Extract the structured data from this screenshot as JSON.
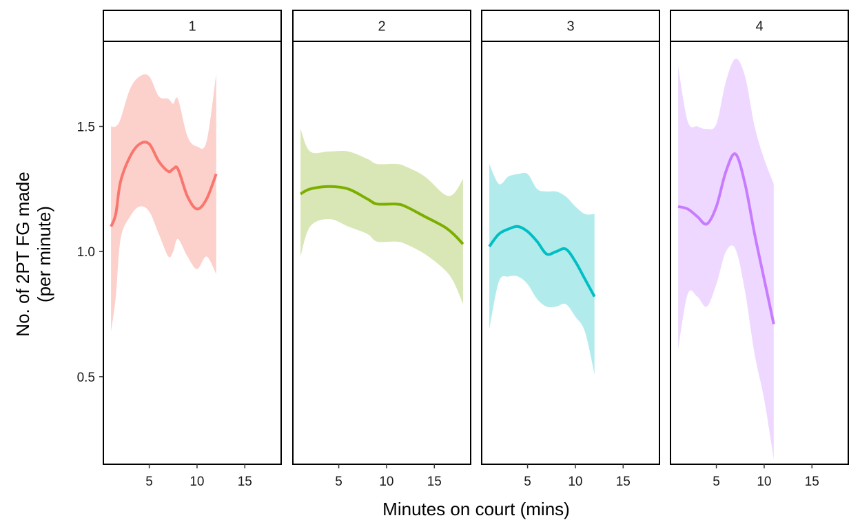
{
  "chart_data": {
    "type": "line",
    "facets": [
      "1",
      "2",
      "3",
      "4"
    ],
    "xlabel": "Minutes on court (mins)",
    "ylabel": [
      "No. of 2PT FG made",
      "(per minute)"
    ],
    "xlim": [
      0.2,
      18.8
    ],
    "ylim": [
      0.15,
      1.84
    ],
    "xticks": [
      5,
      10,
      15
    ],
    "yticks": [
      0.5,
      1.0,
      1.5
    ],
    "ytick_labels": [
      "0.5",
      "1.0",
      "1.5"
    ],
    "smooth": true,
    "panel_grid": false,
    "legend": "none",
    "series": [
      {
        "facet": "1",
        "color": "#F8766D",
        "band_color": "#FCD0CB",
        "points": [
          {
            "x": 1,
            "y": 1.1,
            "lo": 0.68,
            "hi": 1.5
          },
          {
            "x": 1.5,
            "y": 1.15,
            "lo": 0.82,
            "hi": 1.5
          },
          {
            "x": 2,
            "y": 1.28,
            "lo": 1.05,
            "hi": 1.53
          },
          {
            "x": 3,
            "y": 1.38,
            "lo": 1.14,
            "hi": 1.65
          },
          {
            "x": 4,
            "y": 1.43,
            "lo": 1.18,
            "hi": 1.7
          },
          {
            "x": 5,
            "y": 1.43,
            "lo": 1.16,
            "hi": 1.7
          },
          {
            "x": 6,
            "y": 1.36,
            "lo": 1.07,
            "hi": 1.62
          },
          {
            "x": 7,
            "y": 1.32,
            "lo": 0.98,
            "hi": 1.61
          },
          {
            "x": 7.5,
            "y": 1.33,
            "lo": 1.0,
            "hi": 1.59
          },
          {
            "x": 8,
            "y": 1.33,
            "lo": 1.05,
            "hi": 1.61
          },
          {
            "x": 9,
            "y": 1.22,
            "lo": 0.98,
            "hi": 1.46
          },
          {
            "x": 10,
            "y": 1.17,
            "lo": 0.93,
            "hi": 1.42
          },
          {
            "x": 11,
            "y": 1.21,
            "lo": 0.98,
            "hi": 1.44
          },
          {
            "x": 12,
            "y": 1.31,
            "lo": 0.91,
            "hi": 1.71
          }
        ]
      },
      {
        "facet": "2",
        "color": "#7CAE00",
        "band_color": "#D9E7B6",
        "points": [
          {
            "x": 1,
            "y": 1.23,
            "lo": 0.98,
            "hi": 1.49
          },
          {
            "x": 2,
            "y": 1.25,
            "lo": 1.1,
            "hi": 1.4
          },
          {
            "x": 4,
            "y": 1.26,
            "lo": 1.13,
            "hi": 1.4
          },
          {
            "x": 6,
            "y": 1.25,
            "lo": 1.1,
            "hi": 1.4
          },
          {
            "x": 8,
            "y": 1.21,
            "lo": 1.07,
            "hi": 1.37
          },
          {
            "x": 9,
            "y": 1.19,
            "lo": 1.04,
            "hi": 1.35
          },
          {
            "x": 11,
            "y": 1.19,
            "lo": 1.04,
            "hi": 1.35
          },
          {
            "x": 12,
            "y": 1.18,
            "lo": 1.03,
            "hi": 1.34
          },
          {
            "x": 14,
            "y": 1.14,
            "lo": 0.99,
            "hi": 1.3
          },
          {
            "x": 16,
            "y": 1.1,
            "lo": 0.93,
            "hi": 1.23
          },
          {
            "x": 17,
            "y": 1.07,
            "lo": 0.88,
            "hi": 1.23
          },
          {
            "x": 18,
            "y": 1.03,
            "lo": 0.79,
            "hi": 1.29
          }
        ]
      },
      {
        "facet": "3",
        "color": "#00BFC4",
        "band_color": "#B2EBEC",
        "points": [
          {
            "x": 1,
            "y": 1.02,
            "lo": 0.69,
            "hi": 1.35
          },
          {
            "x": 2,
            "y": 1.07,
            "lo": 0.88,
            "hi": 1.27
          },
          {
            "x": 3,
            "y": 1.09,
            "lo": 0.9,
            "hi": 1.3
          },
          {
            "x": 4,
            "y": 1.1,
            "lo": 0.9,
            "hi": 1.31
          },
          {
            "x": 5,
            "y": 1.08,
            "lo": 0.87,
            "hi": 1.31
          },
          {
            "x": 6,
            "y": 1.04,
            "lo": 0.81,
            "hi": 1.25
          },
          {
            "x": 7,
            "y": 0.99,
            "lo": 0.78,
            "hi": 1.24
          },
          {
            "x": 8,
            "y": 1.0,
            "lo": 0.78,
            "hi": 1.24
          },
          {
            "x": 9,
            "y": 1.01,
            "lo": 0.79,
            "hi": 1.22
          },
          {
            "x": 10,
            "y": 0.96,
            "lo": 0.74,
            "hi": 1.18
          },
          {
            "x": 11,
            "y": 0.89,
            "lo": 0.68,
            "hi": 1.15
          },
          {
            "x": 12,
            "y": 0.82,
            "lo": 0.51,
            "hi": 1.15
          }
        ]
      },
      {
        "facet": "4",
        "color": "#C77CFF",
        "band_color": "#EED8FF",
        "points": [
          {
            "x": 1,
            "y": 1.18,
            "lo": 0.61,
            "hi": 1.74
          },
          {
            "x": 2,
            "y": 1.17,
            "lo": 0.83,
            "hi": 1.52
          },
          {
            "x": 3,
            "y": 1.14,
            "lo": 0.82,
            "hi": 1.5
          },
          {
            "x": 4,
            "y": 1.11,
            "lo": 0.78,
            "hi": 1.49
          },
          {
            "x": 5,
            "y": 1.18,
            "lo": 0.87,
            "hi": 1.51
          },
          {
            "x": 6,
            "y": 1.32,
            "lo": 1.0,
            "hi": 1.68
          },
          {
            "x": 7,
            "y": 1.39,
            "lo": 1.01,
            "hi": 1.77
          },
          {
            "x": 8,
            "y": 1.27,
            "lo": 0.84,
            "hi": 1.7
          },
          {
            "x": 9,
            "y": 1.07,
            "lo": 0.59,
            "hi": 1.5
          },
          {
            "x": 10,
            "y": 0.89,
            "lo": 0.41,
            "hi": 1.37
          },
          {
            "x": 11,
            "y": 0.71,
            "lo": 0.17,
            "hi": 1.27
          }
        ]
      }
    ]
  }
}
